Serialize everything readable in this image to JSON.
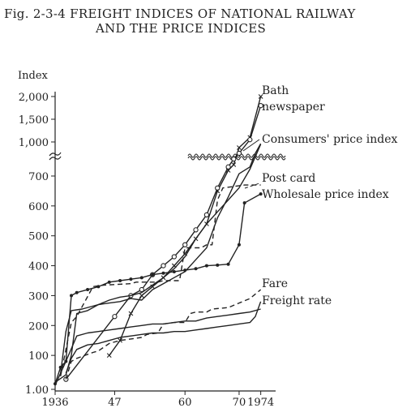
{
  "figure": {
    "title_line1": "Fig. 2-3-4   FREIGHT INDICES OF NATIONAL RAILWAY",
    "title_line2": "AND THE PRICE INDICES"
  },
  "chart_data": {
    "type": "line",
    "ylabel": "Index",
    "xlabel": "",
    "y_scale": "broken",
    "y_ticks_lower": [
      "1.00",
      "100",
      "200",
      "300",
      "400",
      "500",
      "600",
      "700"
    ],
    "y_ticks_upper": [
      "1,000",
      "1,500",
      "2,000"
    ],
    "x_ticks": [
      "1936",
      "47",
      "60",
      "70",
      "1974"
    ],
    "xlim": [
      1936,
      1976
    ],
    "grid": false,
    "legend": "inline labels at right end of each line",
    "colors": {
      "ink": "#222222"
    },
    "series": [
      {
        "name": "Bath",
        "style": "solid",
        "marker": "x",
        "points": [
          [
            1946,
            100
          ],
          [
            1948,
            150
          ],
          [
            1950,
            240
          ],
          [
            1952,
            300
          ],
          [
            1954,
            330
          ],
          [
            1956,
            360
          ],
          [
            1958,
            400
          ],
          [
            1960,
            440
          ],
          [
            1962,
            490
          ],
          [
            1964,
            540
          ],
          [
            1966,
            650
          ],
          [
            1968,
            750
          ],
          [
            1969,
            800
          ],
          [
            1970,
            950
          ],
          [
            1972,
            1100
          ],
          [
            1974,
            2000
          ]
        ]
      },
      {
        "name": "newspaper",
        "style": "solid",
        "marker": "circle",
        "points": [
          [
            1938,
            20
          ],
          [
            1947,
            230
          ],
          [
            1950,
            300
          ],
          [
            1952,
            320
          ],
          [
            1954,
            370
          ],
          [
            1956,
            400
          ],
          [
            1958,
            430
          ],
          [
            1960,
            470
          ],
          [
            1962,
            520
          ],
          [
            1964,
            570
          ],
          [
            1966,
            660
          ],
          [
            1968,
            780
          ],
          [
            1969,
            850
          ],
          [
            1970,
            900
          ],
          [
            1972,
            1050
          ],
          [
            1974,
            1800
          ]
        ]
      },
      {
        "name": "Consumers' price index",
        "style": "solid",
        "marker": "none",
        "points": [
          [
            1936,
            10
          ],
          [
            1938,
            35
          ],
          [
            1939,
            100
          ],
          [
            1940,
            240
          ],
          [
            1942,
            250
          ],
          [
            1944,
            270
          ],
          [
            1946,
            285
          ],
          [
            1948,
            295
          ],
          [
            1950,
            300
          ],
          [
            1952,
            310
          ],
          [
            1954,
            335
          ],
          [
            1956,
            360
          ],
          [
            1958,
            390
          ],
          [
            1960,
            430
          ],
          [
            1962,
            490
          ],
          [
            1964,
            540
          ],
          [
            1966,
            580
          ],
          [
            1968,
            620
          ],
          [
            1970,
            660
          ],
          [
            1972,
            760
          ],
          [
            1974,
            980
          ]
        ]
      },
      {
        "name": "Post card",
        "style": "dashed",
        "marker": "none",
        "points": [
          [
            1937,
            30
          ],
          [
            1938,
            120
          ],
          [
            1939,
            210
          ],
          [
            1940,
            230
          ],
          [
            1943,
            330
          ],
          [
            1945,
            335
          ],
          [
            1950,
            340
          ],
          [
            1951,
            345
          ],
          [
            1955,
            345
          ],
          [
            1956,
            350
          ],
          [
            1959,
            350
          ],
          [
            1960,
            460
          ],
          [
            1963,
            460
          ],
          [
            1964,
            470
          ],
          [
            1965,
            470
          ],
          [
            1966,
            620
          ],
          [
            1967,
            660
          ],
          [
            1971,
            670
          ],
          [
            1974,
            670
          ]
        ]
      },
      {
        "name": "Wholesale price index",
        "style": "solid",
        "marker": "dot",
        "points": [
          [
            1936,
            5
          ],
          [
            1937,
            60
          ],
          [
            1938,
            80
          ],
          [
            1939,
            300
          ],
          [
            1940,
            310
          ],
          [
            1942,
            320
          ],
          [
            1944,
            330
          ],
          [
            1946,
            345
          ],
          [
            1948,
            350
          ],
          [
            1950,
            355
          ],
          [
            1952,
            360
          ],
          [
            1954,
            370
          ],
          [
            1956,
            375
          ],
          [
            1958,
            380
          ],
          [
            1960,
            385
          ],
          [
            1962,
            390
          ],
          [
            1964,
            400
          ],
          [
            1966,
            402
          ],
          [
            1968,
            405
          ],
          [
            1970,
            470
          ],
          [
            1971,
            610
          ],
          [
            1974,
            640
          ]
        ]
      },
      {
        "name": "Fare",
        "style": "dashed",
        "marker": "none",
        "points": [
          [
            1938,
            20
          ],
          [
            1939,
            80
          ],
          [
            1940,
            90
          ],
          [
            1943,
            110
          ],
          [
            1944,
            115
          ],
          [
            1946,
            140
          ],
          [
            1948,
            150
          ],
          [
            1950,
            155
          ],
          [
            1952,
            160
          ],
          [
            1953,
            170
          ],
          [
            1955,
            175
          ],
          [
            1956,
            205
          ],
          [
            1958,
            210
          ],
          [
            1960,
            210
          ],
          [
            1961,
            240
          ],
          [
            1962,
            245
          ],
          [
            1964,
            245
          ],
          [
            1965,
            255
          ],
          [
            1968,
            260
          ],
          [
            1970,
            275
          ],
          [
            1972,
            290
          ],
          [
            1974,
            320
          ]
        ]
      },
      {
        "name": "Freight rate",
        "style": "solid",
        "marker": "none",
        "points": [
          [
            1938,
            40
          ],
          [
            1939,
            90
          ],
          [
            1940,
            120
          ],
          [
            1942,
            135
          ],
          [
            1944,
            140
          ],
          [
            1946,
            150
          ],
          [
            1948,
            160
          ],
          [
            1950,
            165
          ],
          [
            1952,
            170
          ],
          [
            1954,
            175
          ],
          [
            1956,
            175
          ],
          [
            1958,
            180
          ],
          [
            1960,
            180
          ],
          [
            1962,
            185
          ],
          [
            1964,
            190
          ],
          [
            1966,
            195
          ],
          [
            1968,
            200
          ],
          [
            1970,
            205
          ],
          [
            1972,
            210
          ],
          [
            1973,
            230
          ],
          [
            1974,
            280
          ]
        ]
      },
      {
        "name": "",
        "style": "solid",
        "marker": "none",
        "points": [
          [
            1937,
            40
          ],
          [
            1938,
            180
          ],
          [
            1939,
            250
          ],
          [
            1941,
            255
          ],
          [
            1944,
            270
          ],
          [
            1946,
            275
          ],
          [
            1948,
            280
          ],
          [
            1950,
            290
          ],
          [
            1952,
            285
          ],
          [
            1954,
            320
          ],
          [
            1956,
            340
          ],
          [
            1958,
            360
          ],
          [
            1960,
            380
          ],
          [
            1962,
            420
          ],
          [
            1964,
            460
          ],
          [
            1966,
            560
          ],
          [
            1968,
            630
          ],
          [
            1970,
            720
          ],
          [
            1972,
            780
          ],
          [
            1973,
            900
          ],
          [
            1974,
            985
          ]
        ]
      },
      {
        "name": "",
        "style": "solid",
        "marker": "none",
        "points": [
          [
            1936,
            0
          ],
          [
            1938,
            80
          ],
          [
            1940,
            165
          ],
          [
            1942,
            175
          ],
          [
            1944,
            180
          ],
          [
            1946,
            185
          ],
          [
            1948,
            190
          ],
          [
            1950,
            195
          ],
          [
            1952,
            200
          ],
          [
            1954,
            205
          ],
          [
            1956,
            205
          ],
          [
            1958,
            210
          ],
          [
            1960,
            215
          ],
          [
            1962,
            215
          ],
          [
            1964,
            225
          ],
          [
            1966,
            230
          ],
          [
            1968,
            235
          ],
          [
            1970,
            240
          ],
          [
            1972,
            245
          ],
          [
            1974,
            255
          ]
        ]
      }
    ]
  }
}
